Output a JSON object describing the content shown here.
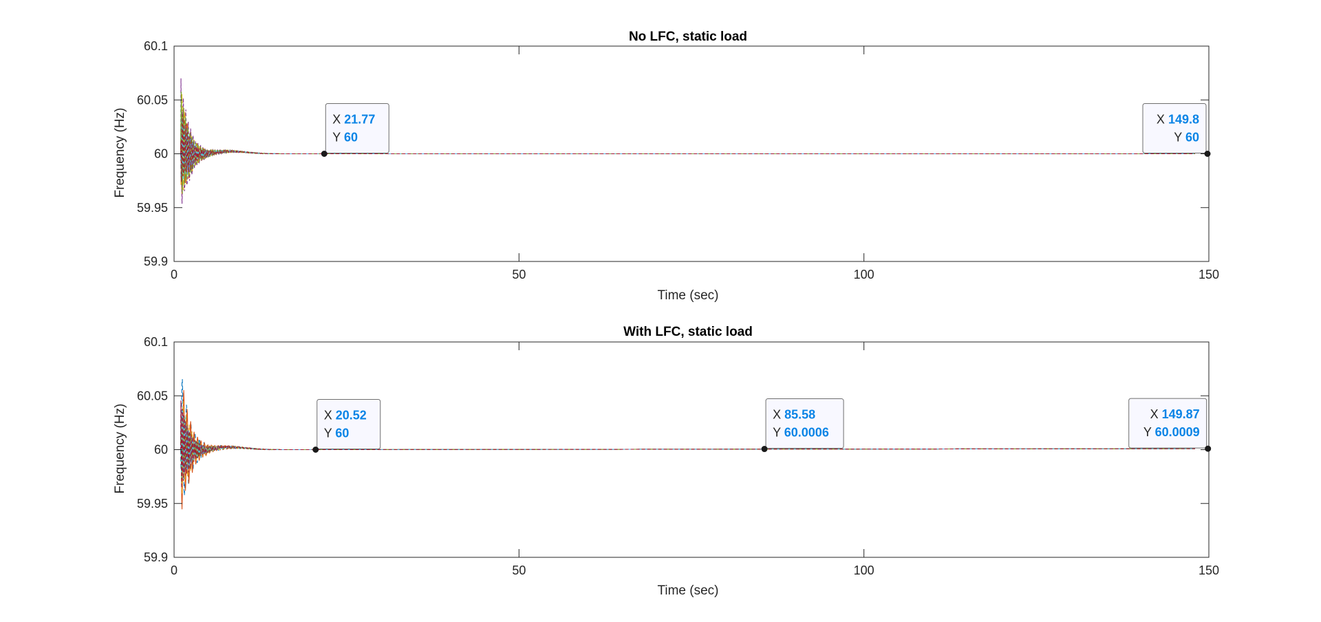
{
  "colors": {
    "series": [
      "#0072BD",
      "#D95319",
      "#EDB120",
      "#7E2F8E",
      "#77AC30",
      "#4DBEEE",
      "#A2142F"
    ],
    "datatip_value": "#0A84E6",
    "axes": "#262626",
    "datatip_border": "#6E6E6E",
    "datatip_bg": "#F8F8FF"
  },
  "chart_data": [
    {
      "type": "line",
      "title": "No LFC, static load",
      "xlabel": "Time (sec)",
      "ylabel": "Frequency (Hz)",
      "xlim": [
        0,
        150
      ],
      "ylim": [
        59.9,
        60.1
      ],
      "xticks": [
        "0",
        "50",
        "100",
        "150"
      ],
      "yticks": [
        "59.9",
        "59.95",
        "60",
        "60.05",
        "60.1"
      ],
      "grid": false,
      "line_styles": "multiple dashed/solid oscillating series settling to 60 Hz",
      "series_envelope": {
        "t": [
          1,
          1.3,
          1.6,
          2,
          2.5,
          3,
          4,
          5,
          6,
          8,
          10,
          15,
          20,
          150
        ],
        "max": [
          60.08,
          60.06,
          60.05,
          60.035,
          60.025,
          60.015,
          60.008,
          60.004,
          60.003,
          60.002,
          60.001,
          60.0,
          60.0,
          60.0
        ],
        "min": [
          59.938,
          59.95,
          59.96,
          59.965,
          59.975,
          59.985,
          59.992,
          59.996,
          59.998,
          59.999,
          59.9995,
          60.0,
          60.0,
          60.0
        ]
      },
      "datatips": [
        {
          "x_label": "X",
          "y_label": "Y",
          "x": "21.77",
          "y": "60",
          "xv": 21.77,
          "yv": 60,
          "align": "right"
        },
        {
          "x_label": "X",
          "y_label": "Y",
          "x": "149.8",
          "y": "60",
          "xv": 149.8,
          "yv": 60,
          "align": "left"
        }
      ]
    },
    {
      "type": "line",
      "title": "With LFC, static load",
      "xlabel": "Time (sec)",
      "ylabel": "Frequency (Hz)",
      "xlim": [
        0,
        150
      ],
      "ylim": [
        59.9,
        60.1
      ],
      "xticks": [
        "0",
        "50",
        "100",
        "150"
      ],
      "yticks": [
        "59.9",
        "59.95",
        "60",
        "60.05",
        "60.1"
      ],
      "grid": false,
      "line_styles": "multiple dashed/solid oscillating series settling to 60 Hz",
      "series_envelope": {
        "t": [
          1,
          1.3,
          1.6,
          2,
          2.5,
          3,
          4,
          5,
          6,
          8,
          10,
          15,
          20,
          150
        ],
        "max": [
          60.08,
          60.06,
          60.05,
          60.035,
          60.025,
          60.015,
          60.008,
          60.004,
          60.003,
          60.002,
          60.001,
          60.0,
          60.0,
          60.0009
        ],
        "min": [
          59.936,
          59.95,
          59.96,
          59.965,
          59.975,
          59.985,
          59.992,
          59.996,
          59.998,
          59.999,
          59.9995,
          60.0,
          60.0,
          60.0009
        ]
      },
      "datatips": [
        {
          "x_label": "X",
          "y_label": "Y",
          "x": "20.52",
          "y": "60",
          "xv": 20.52,
          "yv": 60,
          "align": "right"
        },
        {
          "x_label": "X",
          "y_label": "Y",
          "x": "85.58",
          "y": "60.0006",
          "xv": 85.58,
          "yv": 60.0006,
          "align": "right"
        },
        {
          "x_label": "X",
          "y_label": "Y",
          "x": "149.87",
          "y": "60.0009",
          "xv": 149.87,
          "yv": 60.0009,
          "align": "left"
        }
      ]
    }
  ]
}
